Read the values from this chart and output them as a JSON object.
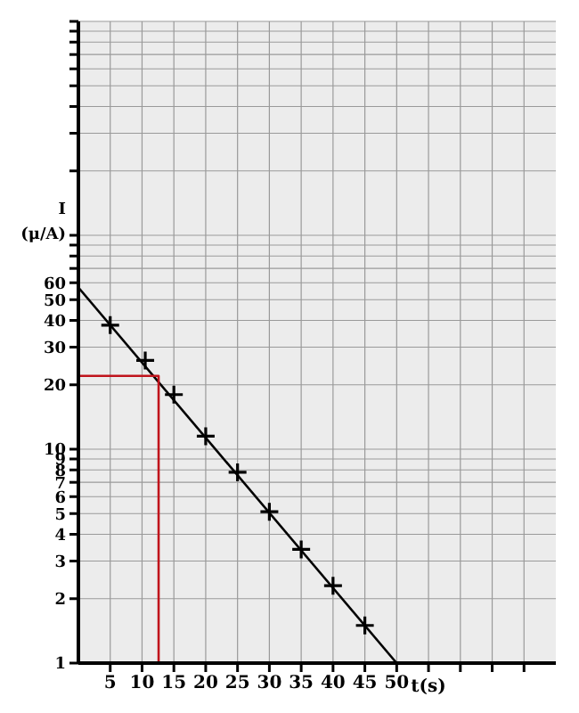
{
  "chart_data": {
    "type": "scatter",
    "xlabel": "t(s)",
    "ylabel": "I (μ/A)",
    "log": "y",
    "grid": true,
    "marker": "cross",
    "xlim": [
      0,
      75
    ],
    "xticks": [
      5,
      10,
      15,
      20,
      25,
      30,
      35,
      40,
      45,
      50,
      {
        "value": 55,
        "label": null
      },
      {
        "value": 60,
        "label": null
      },
      {
        "value": 65,
        "label": null
      },
      {
        "value": 70,
        "label": null
      }
    ],
    "ylim": [
      1,
      1000
    ],
    "yticks": [
      1,
      2,
      3,
      4,
      5,
      6,
      7,
      8,
      9,
      10,
      20,
      30,
      40,
      50,
      60,
      {
        "value": 70,
        "label": null
      },
      {
        "value": 80,
        "label": null
      },
      {
        "value": 90,
        "label": null
      },
      {
        "value": 100,
        "label": null
      },
      {
        "value": 200,
        "label": null
      },
      {
        "value": 300,
        "label": null
      },
      {
        "value": 400,
        "label": null
      },
      {
        "value": 500,
        "label": null
      },
      {
        "value": 600,
        "label": null
      },
      {
        "value": 700,
        "label": null
      },
      {
        "value": 800,
        "label": null
      },
      {
        "value": 900,
        "label": null
      },
      {
        "value": 1000,
        "label": null
      }
    ],
    "series": [
      {
        "color": "#000000",
        "x": [
          5,
          10.5,
          15,
          20,
          25,
          30,
          35,
          40,
          45
        ],
        "values": [
          38,
          26,
          18,
          11.5,
          7.8,
          5.1,
          3.4,
          2.3,
          1.5
        ]
      },
      {
        "type": "line",
        "color": "#000000",
        "marker": "none",
        "x": [
          0,
          50
        ],
        "values": [
          57,
          1
        ]
      },
      {
        "type": "line",
        "color": "#c0141c",
        "marker": "none",
        "x": [
          0,
          12.6,
          12.6
        ],
        "values": [
          22,
          22,
          1
        ]
      }
    ]
  }
}
